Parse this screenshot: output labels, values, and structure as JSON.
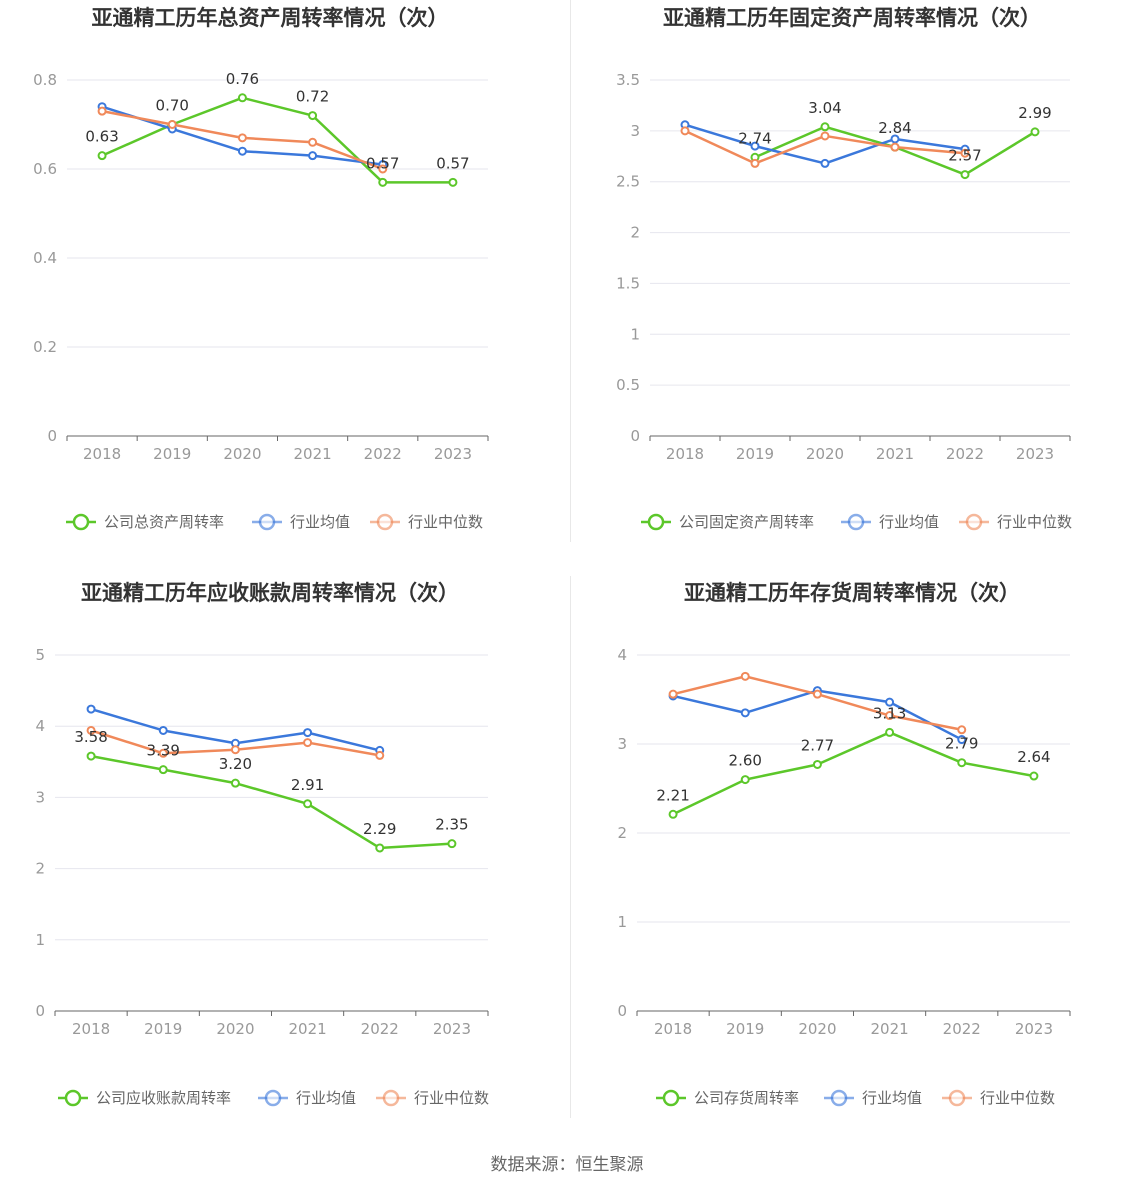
{
  "colors": {
    "company": "#5cc72a",
    "mean": "#3b78db",
    "median": "#f0895a"
  },
  "source": "数据来源：恒生聚源",
  "chart_data": [
    {
      "type": "line",
      "title": "亚通精工历年总资产周转率情况（次）",
      "categories": [
        "2018",
        "2019",
        "2020",
        "2021",
        "2022",
        "2023"
      ],
      "ylim": [
        0,
        0.8
      ],
      "yticks": [
        "0",
        "0.2",
        "0.4",
        "0.6",
        "0.8"
      ],
      "ytick_values": [
        0,
        0.2,
        0.4,
        0.6,
        0.8
      ],
      "legend": "bottom",
      "series": [
        {
          "name": "公司总资产周转率",
          "role": "company",
          "values": [
            0.63,
            0.7,
            0.76,
            0.72,
            0.57,
            0.57
          ],
          "labels": [
            "0.63",
            "0.70",
            "0.76",
            "0.72",
            "0.57",
            "0.57"
          ]
        },
        {
          "name": "行业均值",
          "role": "mean",
          "values": [
            0.74,
            0.69,
            0.64,
            0.63,
            0.61,
            null
          ]
        },
        {
          "name": "行业中位数",
          "role": "median",
          "values": [
            0.73,
            0.7,
            0.67,
            0.66,
            0.6,
            null
          ]
        }
      ]
    },
    {
      "type": "line",
      "title": "亚通精工历年固定资产周转率情况（次）",
      "categories": [
        "2018",
        "2019",
        "2020",
        "2021",
        "2022",
        "2023"
      ],
      "ylim": [
        0,
        3.5
      ],
      "yticks": [
        "0",
        "0.5",
        "1",
        "1.5",
        "2",
        "2.5",
        "3",
        "3.5"
      ],
      "ytick_values": [
        0,
        0.5,
        1,
        1.5,
        2,
        2.5,
        3,
        3.5
      ],
      "legend": "bottom",
      "series": [
        {
          "name": "公司固定资产周转率",
          "role": "company",
          "values": [
            null,
            2.74,
            3.04,
            2.84,
            2.57,
            2.99
          ],
          "labels": [
            null,
            "2.74",
            "3.04",
            "2.84",
            "2.57",
            "2.99"
          ]
        },
        {
          "name": "行业均值",
          "role": "mean",
          "values": [
            3.06,
            2.85,
            2.68,
            2.92,
            2.82,
            null
          ]
        },
        {
          "name": "行业中位数",
          "role": "median",
          "values": [
            3.0,
            2.68,
            2.95,
            2.84,
            2.78,
            null
          ]
        }
      ]
    },
    {
      "type": "line",
      "title": "亚通精工历年应收账款周转率情况（次）",
      "categories": [
        "2018",
        "2019",
        "2020",
        "2021",
        "2022",
        "2023"
      ],
      "ylim": [
        0,
        5
      ],
      "yticks": [
        "0",
        "1",
        "2",
        "3",
        "4",
        "5"
      ],
      "ytick_values": [
        0,
        1,
        2,
        3,
        4,
        5
      ],
      "legend": "bottom",
      "series": [
        {
          "name": "公司应收账款周转率",
          "role": "company",
          "values": [
            3.58,
            3.39,
            3.2,
            2.91,
            2.29,
            2.35
          ],
          "labels": [
            "3.58",
            "3.39",
            "3.20",
            "2.91",
            "2.29",
            "2.35"
          ]
        },
        {
          "name": "行业均值",
          "role": "mean",
          "values": [
            4.24,
            3.94,
            3.76,
            3.91,
            3.66,
            null
          ]
        },
        {
          "name": "行业中位数",
          "role": "median",
          "values": [
            3.94,
            3.62,
            3.67,
            3.77,
            3.59,
            null
          ]
        }
      ]
    },
    {
      "type": "line",
      "title": "亚通精工历年存货周转率情况（次）",
      "categories": [
        "2018",
        "2019",
        "2020",
        "2021",
        "2022",
        "2023"
      ],
      "ylim": [
        0,
        4
      ],
      "yticks": [
        "0",
        "1",
        "2",
        "3",
        "4"
      ],
      "ytick_values": [
        0,
        1,
        2,
        3,
        4
      ],
      "legend": "bottom",
      "series": [
        {
          "name": "公司存货周转率",
          "role": "company",
          "values": [
            2.21,
            2.6,
            2.77,
            3.13,
            2.79,
            2.64
          ],
          "labels": [
            "2.21",
            "2.60",
            "2.77",
            "3.13",
            "2.79",
            "2.64"
          ]
        },
        {
          "name": "行业均值",
          "role": "mean",
          "values": [
            3.54,
            3.35,
            3.6,
            3.47,
            3.05,
            null
          ]
        },
        {
          "name": "行业中位数",
          "role": "median",
          "values": [
            3.56,
            3.76,
            3.56,
            3.32,
            3.16,
            null
          ]
        }
      ]
    }
  ]
}
